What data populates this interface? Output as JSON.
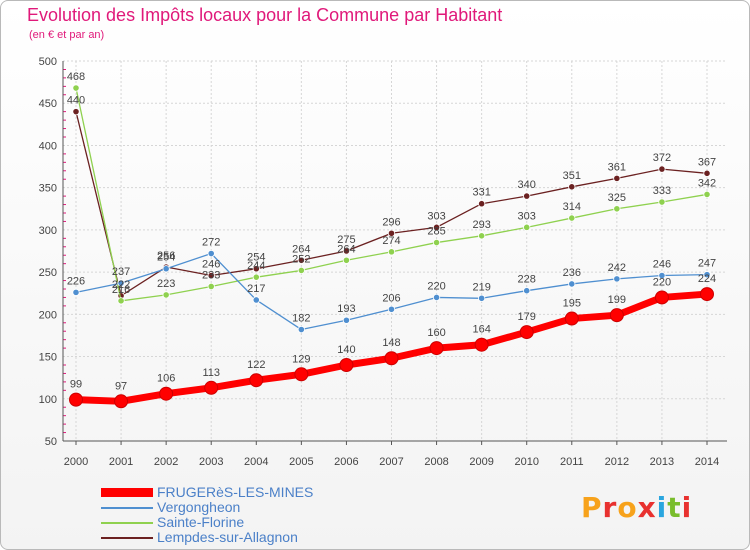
{
  "header": {
    "title": "Evolution des Impôts locaux pour la Commune par Habitant",
    "subtitle": "(en € et par an)"
  },
  "logo": {
    "text": "Proxiti",
    "colors": [
      "#f7a21b",
      "#e8312f",
      "#2aa6df",
      "#79bd2c"
    ]
  },
  "chart_data": {
    "type": "line",
    "title": "Evolution des Impôts locaux pour la Commune par Habitant",
    "subtitle": "(en € et par an)",
    "xlabel": "",
    "ylabel": "",
    "ylim": [
      50,
      500
    ],
    "yticks": [
      50,
      100,
      150,
      200,
      250,
      300,
      350,
      400,
      450,
      500
    ],
    "grid": true,
    "legend_position": "bottom-left",
    "categories": [
      "2000",
      "2001",
      "2002",
      "2003",
      "2004",
      "2005",
      "2006",
      "2007",
      "2008",
      "2009",
      "2010",
      "2011",
      "2012",
      "2013",
      "2014"
    ],
    "series": [
      {
        "name": "FRUGERèS-LES-MINES",
        "color": "#ff0000",
        "values": [
          99,
          97,
          106,
          113,
          122,
          129,
          140,
          148,
          160,
          164,
          179,
          195,
          199,
          220,
          224
        ]
      },
      {
        "name": "Vergongheon",
        "color": "#4f8fd0",
        "values": [
          226,
          237,
          254,
          272,
          217,
          182,
          193,
          206,
          220,
          219,
          228,
          236,
          242,
          246,
          247
        ]
      },
      {
        "name": "Sainte-Florine",
        "color": "#8fd14f",
        "values": [
          468,
          216,
          223,
          233,
          244,
          252,
          264,
          274,
          285,
          293,
          303,
          314,
          325,
          333,
          342
        ]
      },
      {
        "name": "Lempdes-sur-Allagnon",
        "color": "#6b2121",
        "values": [
          440,
          222,
          256,
          246,
          254,
          264,
          275,
          296,
          303,
          331,
          340,
          351,
          361,
          372,
          367
        ]
      }
    ]
  }
}
